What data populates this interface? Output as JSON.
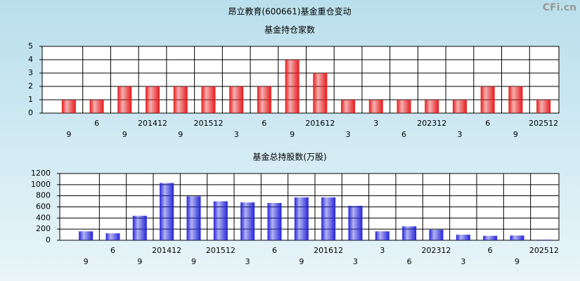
{
  "title": "昂立教育(600661)基金重仓变动",
  "watermark": "CFi.cn",
  "chart_data": [
    {
      "type": "bar",
      "title": "基金持仓家数",
      "categories": [
        "9",
        "6",
        "9",
        "201412",
        "9",
        "201512",
        "3",
        "6",
        "9",
        "201612",
        "3",
        "3",
        "6",
        "202312",
        "3",
        "6",
        "9",
        "202512"
      ],
      "values": [
        1,
        1,
        2,
        2,
        2,
        2,
        2,
        2,
        4,
        3,
        1,
        1,
        1,
        1,
        1,
        2,
        2,
        1
      ],
      "color": "#e41a1c",
      "ylim": [
        0,
        5
      ],
      "yticks": [
        0,
        1,
        2,
        3,
        4,
        5
      ],
      "grid": true
    },
    {
      "type": "bar",
      "title": "基金总持股数(万股)",
      "categories": [
        "9",
        "6",
        "9",
        "201412",
        "9",
        "201512",
        "3",
        "6",
        "9",
        "201612",
        "3",
        "3",
        "6",
        "202312",
        "3",
        "6",
        "9",
        "202512"
      ],
      "values": [
        160,
        125,
        440,
        1030,
        790,
        700,
        680,
        670,
        770,
        770,
        620,
        160,
        250,
        190,
        100,
        80,
        85,
        10
      ],
      "color": "#2424d8",
      "ylim": [
        0,
        1200
      ],
      "yticks": [
        0,
        200,
        400,
        600,
        800,
        1000,
        1200
      ],
      "grid": true
    }
  ]
}
